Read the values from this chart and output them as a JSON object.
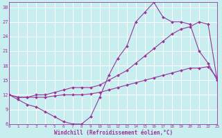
{
  "xlabel": "Windchill (Refroidissement éolien,°C)",
  "bg_color": "#c8eef0",
  "grid_color": "#ffffff",
  "line_color": "#993399",
  "line1_x": [
    0,
    1,
    2,
    3,
    4,
    5,
    6,
    7,
    8,
    9,
    10,
    11,
    12,
    13,
    14,
    15,
    16,
    17,
    18,
    19,
    20,
    21,
    22,
    23
  ],
  "line1_y": [
    12,
    11,
    10,
    9.5,
    8.5,
    7.5,
    6.5,
    6,
    6,
    7.5,
    11.5,
    16,
    19.5,
    22,
    27,
    29,
    31,
    28,
    27,
    27,
    26.5,
    21,
    18.5,
    15
  ],
  "line2_x": [
    0,
    1,
    2,
    3,
    4,
    5,
    6,
    7,
    8,
    9,
    10,
    11,
    12,
    13,
    14,
    15,
    16,
    17,
    18,
    19,
    20,
    21,
    22,
    23
  ],
  "line2_y": [
    12,
    11.5,
    11.5,
    12,
    12,
    12.5,
    13,
    13.5,
    13.5,
    13.5,
    14,
    15,
    16,
    17,
    18.5,
    20,
    21.5,
    23,
    24.5,
    25.5,
    26,
    27,
    26.5,
    15
  ],
  "line3_x": [
    0,
    1,
    2,
    3,
    4,
    5,
    6,
    7,
    8,
    9,
    10,
    11,
    12,
    13,
    14,
    15,
    16,
    17,
    18,
    19,
    20,
    21,
    22,
    23
  ],
  "line3_y": [
    12,
    11.5,
    11.5,
    11.5,
    11.5,
    11.8,
    12,
    12,
    12,
    12.2,
    12.5,
    13,
    13.5,
    14,
    14.5,
    15,
    15.5,
    16,
    16.5,
    17,
    17.5,
    17.5,
    17.8,
    15.5
  ],
  "ylim": [
    6,
    31
  ],
  "xlim": [
    0,
    23
  ],
  "yticks": [
    6,
    9,
    12,
    15,
    18,
    21,
    24,
    27,
    30
  ],
  "xticks": [
    0,
    1,
    2,
    3,
    4,
    5,
    6,
    7,
    8,
    9,
    10,
    11,
    12,
    13,
    14,
    15,
    16,
    17,
    18,
    19,
    20,
    21,
    22,
    23
  ]
}
